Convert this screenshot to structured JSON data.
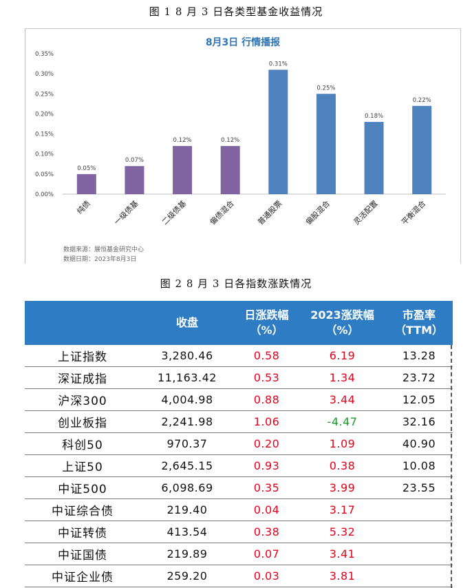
{
  "figure1": {
    "caption": "图 1   8 月 3 日各类型基金收益情况"
  },
  "figure2": {
    "caption": "图 2   8 月 3 日各指数涨跌情况"
  },
  "chart_data": {
    "type": "bar",
    "title": "8月3日  行情播报",
    "categories": [
      "纯债",
      "一级债基",
      "二级债基",
      "偏债混合",
      "普通股票",
      "偏股混合",
      "灵活配置",
      "平衡混合"
    ],
    "values": [
      0.05,
      0.07,
      0.12,
      0.12,
      0.31,
      0.25,
      0.18,
      0.22
    ],
    "data_labels": [
      "0.05%",
      "0.07%",
      "0.12%",
      "0.12%",
      "0.31%",
      "0.25%",
      "0.18%",
      "0.22%"
    ],
    "colors": [
      "#8064a2",
      "#8064a2",
      "#8064a2",
      "#8064a2",
      "#4f81bd",
      "#4f81bd",
      "#4f81bd",
      "#4f81bd"
    ],
    "yticks": [
      "0.00%",
      "0.05%",
      "0.10%",
      "0.15%",
      "0.20%",
      "0.25%",
      "0.30%",
      "0.35%"
    ],
    "ylim": [
      0,
      0.35
    ],
    "xlabel": "",
    "ylabel": "",
    "grid": false,
    "title_color": "#2e75b6"
  },
  "source": {
    "line1": "数据来源：展恒基金研究中心",
    "line2": "数据日期：2023年8月3日"
  },
  "table": {
    "headers": [
      {
        "line1": "",
        "line2": ""
      },
      {
        "line1": "收盘",
        "line2": ""
      },
      {
        "line1": "日涨跌幅",
        "line2": "（%）"
      },
      {
        "line1": "2023涨跌幅",
        "line2": "（%）"
      },
      {
        "line1": "市盈率",
        "line2": "（TTM）"
      }
    ],
    "rows": [
      {
        "name": "上证指数",
        "close": "3,280.46",
        "day": "0.58",
        "ytd": "6.19",
        "ytd_color": "red",
        "pe": "13.28"
      },
      {
        "name": "深证成指",
        "close": "11,163.42",
        "day": "0.53",
        "ytd": "1.34",
        "ytd_color": "red",
        "pe": "23.72"
      },
      {
        "name": "沪深300",
        "close": "4,004.98",
        "day": "0.88",
        "ytd": "3.44",
        "ytd_color": "red",
        "pe": "12.05"
      },
      {
        "name": "创业板指",
        "close": "2,241.98",
        "day": "1.06",
        "ytd": "-4.47",
        "ytd_color": "green",
        "pe": "32.16"
      },
      {
        "name": "科创50",
        "close": "970.37",
        "day": "0.20",
        "ytd": "1.09",
        "ytd_color": "red",
        "pe": "40.90"
      },
      {
        "name": "上证50",
        "close": "2,645.15",
        "day": "0.93",
        "ytd": "0.38",
        "ytd_color": "red",
        "pe": "10.08"
      },
      {
        "name": "中证500",
        "close": "6,098.69",
        "day": "0.35",
        "ytd": "3.99",
        "ytd_color": "red",
        "pe": "23.55"
      },
      {
        "name": "中证综合债",
        "close": "219.40",
        "day": "0.04",
        "ytd": "3.17",
        "ytd_color": "red",
        "pe": ""
      },
      {
        "name": "中证转债",
        "close": "413.54",
        "day": "0.38",
        "ytd": "5.32",
        "ytd_color": "red",
        "pe": ""
      },
      {
        "name": "中证国债",
        "close": "219.89",
        "day": "0.07",
        "ytd": "3.41",
        "ytd_color": "red",
        "pe": ""
      },
      {
        "name": "中证企业债",
        "close": "259.20",
        "day": "0.03",
        "ytd": "3.81",
        "ytd_color": "red",
        "pe": ""
      }
    ]
  }
}
